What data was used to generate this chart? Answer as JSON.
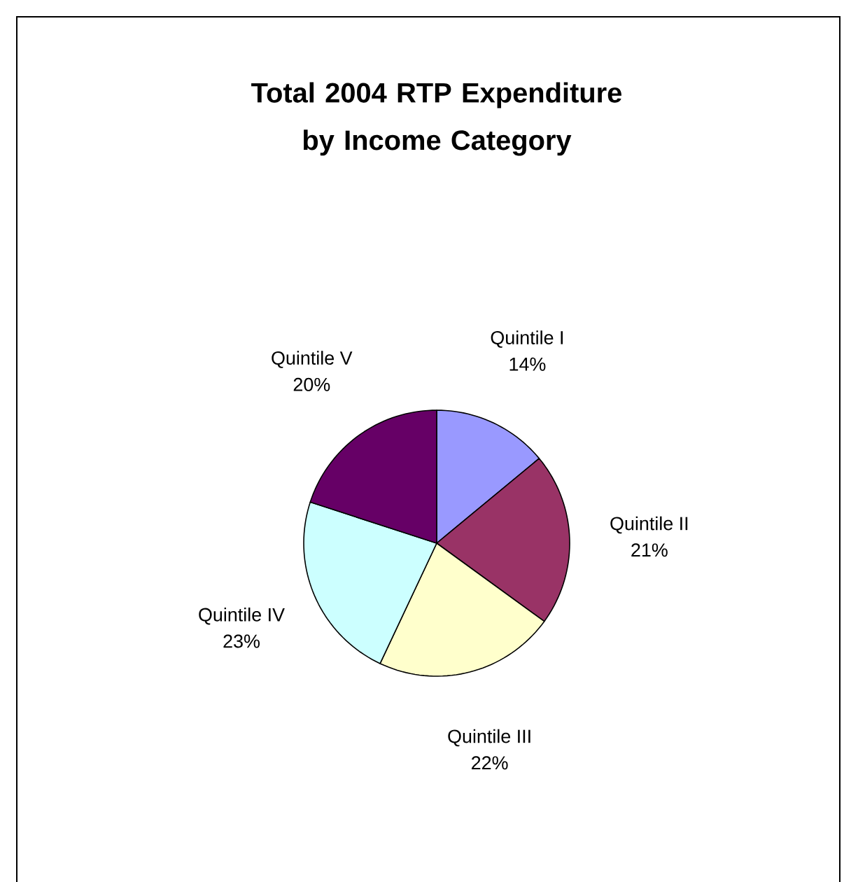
{
  "chart_data": {
    "type": "pie",
    "title": "Total 2004 RTP Expenditure by Income Category",
    "categories": [
      "Quintile I",
      "Quintile II",
      "Quintile III",
      "Quintile IV",
      "Quintile V"
    ],
    "values": [
      14,
      21,
      22,
      23,
      20
    ],
    "colors": [
      "#9999ff",
      "#993366",
      "#ffffcc",
      "#ccffff",
      "#660066"
    ],
    "value_labels": [
      "14%",
      "21%",
      "22%",
      "23%",
      "20%"
    ]
  }
}
